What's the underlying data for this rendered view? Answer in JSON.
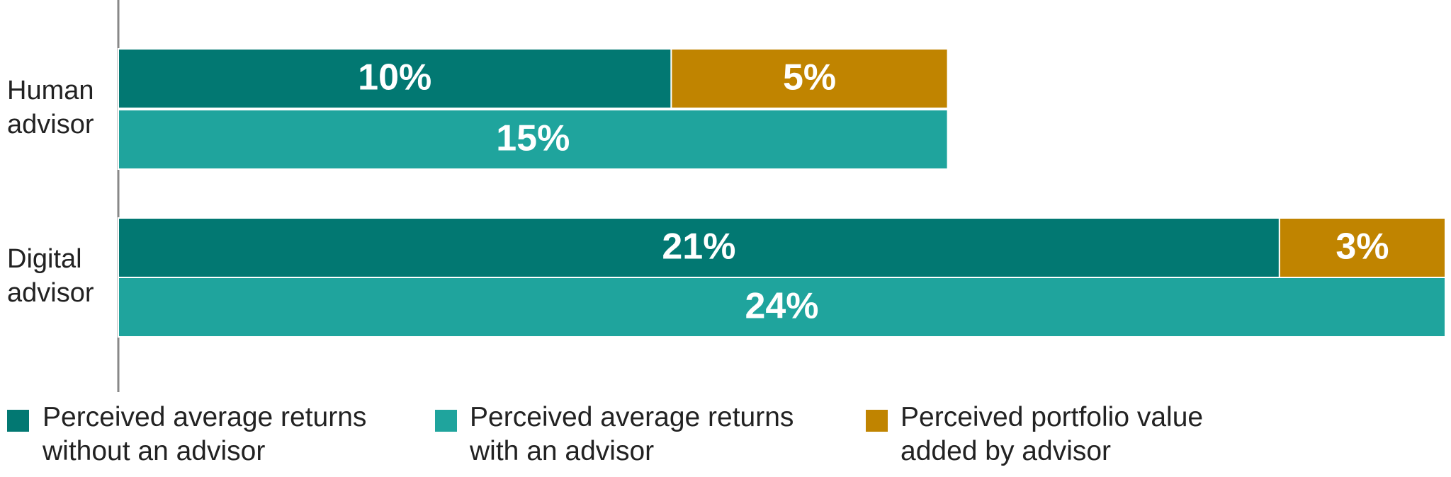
{
  "chart_data": {
    "type": "bar",
    "categories": [
      "Human advisor",
      "Digital advisor"
    ],
    "series": [
      {
        "name": "Perceived average returns without an advisor",
        "color": "#027872",
        "values": [
          10,
          21
        ],
        "value_labels": [
          "10%",
          "21%"
        ]
      },
      {
        "name": "Perceived average returns with an advisor",
        "color": "#1fa49d",
        "values": [
          15,
          24
        ],
        "value_labels": [
          "15%",
          "24%"
        ]
      },
      {
        "name": "Perceived portfolio value added by advisor",
        "color": "#c08400",
        "values": [
          5,
          3
        ],
        "value_labels": [
          "5%",
          "3%"
        ]
      }
    ]
  }
}
